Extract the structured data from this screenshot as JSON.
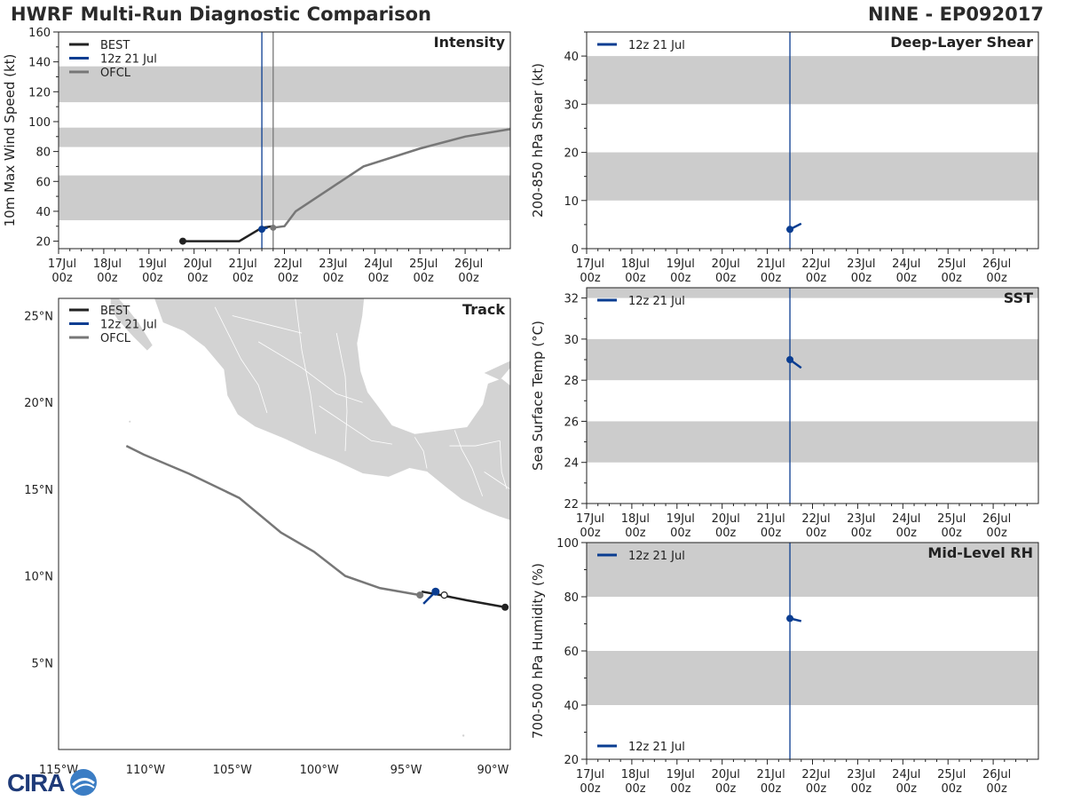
{
  "header": {
    "title": "HWRF Multi-Run Diagnostic Comparison",
    "storm": "NINE - EP092017"
  },
  "logo": {
    "text": "CIRA"
  },
  "colors": {
    "best": "#222222",
    "run": "#0a3d91",
    "ofcl": "#777777",
    "band": "#cccccc",
    "land": "#d3d3d3"
  },
  "time_axis": {
    "range": [
      0,
      240
    ],
    "ticks": [
      {
        "t": 0,
        "l1": "17Jul",
        "l2": "00z"
      },
      {
        "t": 24,
        "l1": "18Jul",
        "l2": "00z"
      },
      {
        "t": 48,
        "l1": "19Jul",
        "l2": "00z"
      },
      {
        "t": 72,
        "l1": "20Jul",
        "l2": "00z"
      },
      {
        "t": 96,
        "l1": "21Jul",
        "l2": "00z"
      },
      {
        "t": 120,
        "l1": "22Jul",
        "l2": "00z"
      },
      {
        "t": 144,
        "l1": "23Jul",
        "l2": "00z"
      },
      {
        "t": 168,
        "l1": "24Jul",
        "l2": "00z"
      },
      {
        "t": 192,
        "l1": "25Jul",
        "l2": "00z"
      },
      {
        "t": 216,
        "l1": "26Jul",
        "l2": "00z"
      }
    ]
  },
  "chart_data": [
    {
      "type": "line",
      "title": "Intensity",
      "ylabel": "10m Max Wind Speed (kt)",
      "x_unit": "hours since 17Jul 00z",
      "ylim": [
        15,
        160
      ],
      "yticks": [
        20,
        40,
        60,
        80,
        100,
        120,
        140,
        160
      ],
      "bands": [
        [
          34,
          64
        ],
        [
          83,
          96
        ],
        [
          113,
          137
        ]
      ],
      "vlines": [
        {
          "t": 108,
          "series": "12z 21 Jul"
        },
        {
          "t": 114,
          "series": "OFCL"
        }
      ],
      "legend": [
        "BEST",
        "12z 21 Jul",
        "OFCL"
      ],
      "series": [
        {
          "name": "BEST",
          "points": [
            [
              66,
              20
            ],
            [
              96,
              20
            ],
            [
              108,
              29
            ],
            [
              114,
              30
            ]
          ]
        },
        {
          "name": "OFCL",
          "points": [
            [
              114,
              29
            ],
            [
              120,
              30
            ],
            [
              126,
              40
            ],
            [
              144,
              55
            ],
            [
              162,
              70
            ],
            [
              192,
              82
            ],
            [
              216,
              90
            ],
            [
              240,
              95
            ]
          ]
        },
        {
          "name": "12z 21 Jul",
          "points": [
            [
              108,
              28
            ],
            [
              111,
              29
            ]
          ]
        }
      ]
    },
    {
      "type": "line",
      "title": "Deep-Layer Shear",
      "ylabel": "200-850 hPa Shear (kt)",
      "ylim": [
        0,
        45
      ],
      "yticks": [
        0,
        10,
        20,
        30,
        40
      ],
      "bands": [
        [
          10,
          20
        ],
        [
          30,
          40
        ]
      ],
      "vlines": [
        {
          "t": 108,
          "series": "12z 21 Jul"
        }
      ],
      "legend": [
        "12z 21 Jul"
      ],
      "series": [
        {
          "name": "12z 21 Jul",
          "points": [
            [
              108,
              4
            ],
            [
              114,
              5.2
            ]
          ]
        }
      ]
    },
    {
      "type": "line",
      "title": "SST",
      "ylabel": "Sea Surface Temp (°C)",
      "ylim": [
        22,
        32.5
      ],
      "yticks": [
        22,
        24,
        26,
        28,
        30,
        32
      ],
      "bands": [
        [
          24,
          26
        ],
        [
          28,
          30
        ],
        [
          32,
          32.5
        ]
      ],
      "vlines": [
        {
          "t": 108,
          "series": "12z 21 Jul"
        }
      ],
      "legend": [
        "12z 21 Jul"
      ],
      "series": [
        {
          "name": "12z 21 Jul",
          "points": [
            [
              108,
              29
            ],
            [
              114,
              28.6
            ]
          ]
        }
      ]
    },
    {
      "type": "line",
      "title": "Mid-Level RH",
      "ylabel": "700-500 hPa Humidity (%)",
      "ylim": [
        20,
        100
      ],
      "yticks": [
        20,
        40,
        60,
        80,
        100
      ],
      "bands": [
        [
          40,
          60
        ],
        [
          80,
          100
        ]
      ],
      "vlines": [
        {
          "t": 108,
          "series": "12z 21 Jul"
        }
      ],
      "legend": [
        "12z 21 Jul"
      ],
      "legend_extra": "12z 21 Jul",
      "series": [
        {
          "name": "12z 21 Jul",
          "points": [
            [
              108,
              72
            ],
            [
              114,
              71
            ]
          ]
        }
      ]
    },
    {
      "type": "scatter",
      "title": "Track",
      "xlim": [
        -115,
        -89
      ],
      "ylim": [
        0,
        26
      ],
      "xticks": [
        {
          "v": -115,
          "label": "115°W"
        },
        {
          "v": -110,
          "label": "110°W"
        },
        {
          "v": -105,
          "label": "105°W"
        },
        {
          "v": -100,
          "label": "100°W"
        },
        {
          "v": -95,
          "label": "95°W"
        },
        {
          "v": -90,
          "label": "90°W"
        }
      ],
      "yticks": [
        {
          "v": 5,
          "label": "5°N"
        },
        {
          "v": 10,
          "label": "10°N"
        },
        {
          "v": 15,
          "label": "15°N"
        },
        {
          "v": 20,
          "label": "20°N"
        },
        {
          "v": 25,
          "label": "25°N"
        }
      ],
      "legend": [
        "BEST",
        "12z 21 Jul",
        "OFCL"
      ],
      "series": [
        {
          "name": "BEST",
          "points": [
            [
              -89.3,
              8.2
            ],
            [
              -91.5,
              8.6
            ],
            [
              -93.0,
              8.9
            ],
            [
              -94.1,
              9.1
            ]
          ]
        },
        {
          "name": "OFCL",
          "points": [
            [
              -94.2,
              8.9
            ],
            [
              -96.5,
              9.3
            ],
            [
              -98.5,
              10.0
            ],
            [
              -100.3,
              11.4
            ],
            [
              -102.2,
              12.5
            ],
            [
              -104.6,
              14.5
            ],
            [
              -107.5,
              15.9
            ],
            [
              -110.1,
              17.0
            ],
            [
              -111.1,
              17.5
            ]
          ]
        },
        {
          "name": "12z 21 Jul",
          "points": [
            [
              -93.3,
              9.1
            ],
            [
              -93.7,
              8.7
            ],
            [
              -94.0,
              8.4
            ]
          ]
        }
      ]
    }
  ]
}
